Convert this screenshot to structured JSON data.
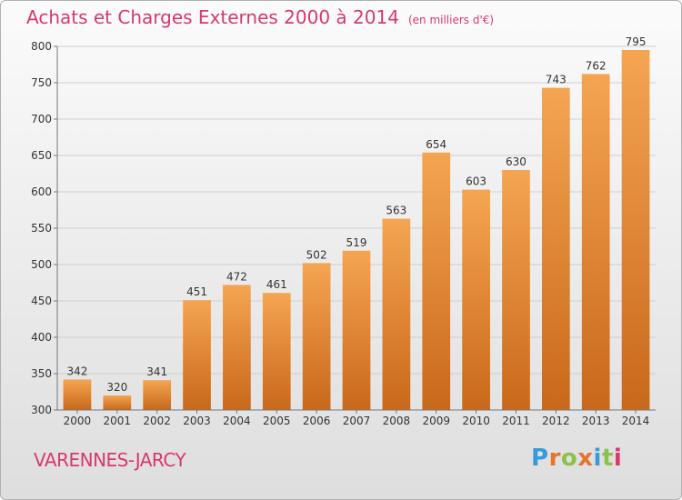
{
  "chart_data": {
    "type": "bar",
    "title": "Achats et Charges Externes 2000 à 2014",
    "subtitle": "(en milliers d'€)",
    "categories": [
      "2000",
      "2001",
      "2002",
      "2003",
      "2004",
      "2005",
      "2006",
      "2007",
      "2008",
      "2009",
      "2010",
      "2011",
      "2012",
      "2013",
      "2014"
    ],
    "values": [
      342,
      320,
      341,
      451,
      472,
      461,
      502,
      519,
      563,
      654,
      603,
      630,
      743,
      762,
      795
    ],
    "ylim": [
      300,
      800
    ],
    "yticks": [
      300,
      350,
      400,
      450,
      500,
      550,
      600,
      650,
      700,
      750,
      800
    ],
    "grid": true,
    "legend": "none",
    "colors": {
      "bar_top": "#f5a552",
      "bar_bottom": "#c9681a",
      "title": "#d9386c"
    }
  },
  "footer": {
    "commune": "VARENNES-JARCY",
    "brand_letters": [
      "P",
      "r",
      "o",
      "x",
      "i",
      "t",
      "i"
    ],
    "brand_colors": [
      "#3a9ad9",
      "#e8732a",
      "#8bc34a",
      "#e8732a",
      "#3a9ad9",
      "#8bc34a",
      "#d9386c"
    ]
  }
}
